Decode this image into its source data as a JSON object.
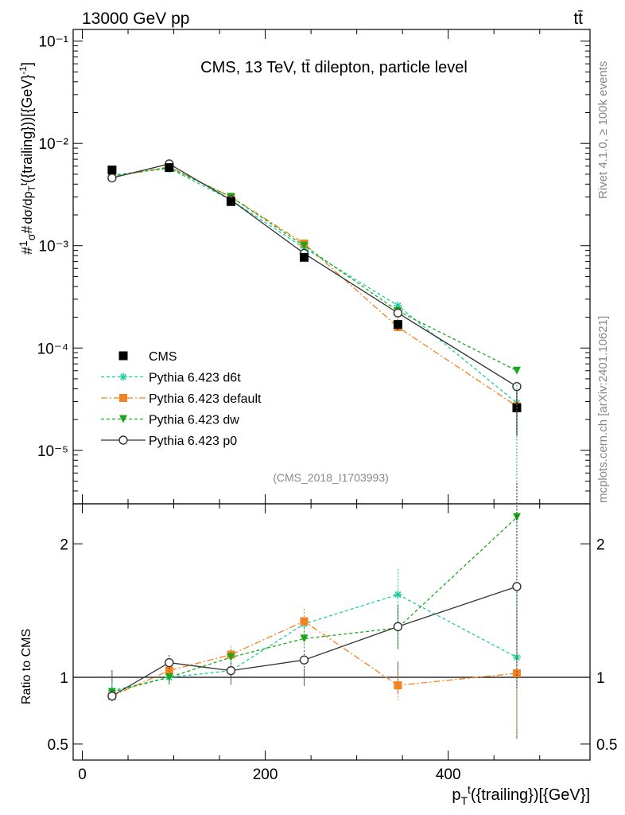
{
  "header": {
    "left": "13000 GeV pp",
    "right": "tt̄"
  },
  "side_labels": {
    "rivet": "Rivet 4.1.0, ≥ 100k events",
    "mcplots": "mcplots.cern.ch [arXiv:2401.10621]"
  },
  "chart_data": {
    "type": "line",
    "title": "CMS, 13 TeV, tt̄ dilepton, particle level",
    "watermark": "(CMS_2018_I1703993)",
    "xlabel": "p_T^t({trailing})[{GeV}]",
    "ylabel": "#frac{1}{σ}#frac{dσ}{dp_T^t({trailing})}[{GeV}^-1]",
    "ratio_ylabel": "Ratio to CMS",
    "xlim": [
      -10,
      555
    ],
    "ylim": [
      3e-06,
      0.13
    ],
    "ratio_ylim": [
      0.38,
      2.3
    ],
    "yscale": "log",
    "x_ticks": [
      0,
      200,
      400
    ],
    "y_ticks": [
      {
        "value": 1e-05,
        "label": "10⁻⁵"
      },
      {
        "value": 0.0001,
        "label": "10⁻⁴"
      },
      {
        "value": 0.001,
        "label": "10⁻³"
      },
      {
        "value": 0.01,
        "label": "10⁻²"
      },
      {
        "value": 0.1,
        "label": "10⁻¹"
      }
    ],
    "ratio_ticks": [
      {
        "value": 0.5,
        "label": "0.5"
      },
      {
        "value": 1,
        "label": "1"
      },
      {
        "value": 2,
        "label": "2"
      }
    ],
    "x": [
      32.5,
      95,
      162.5,
      242.5,
      345,
      475
    ],
    "data": {
      "name": "CMS",
      "values": [
        0.0055,
        0.0058,
        0.0027,
        0.00077,
        0.00017,
        2.6e-05
      ],
      "errors": [
        0.0003,
        0.0003,
        0.00015,
        5e-05,
        2e-05,
        1.2e-05
      ]
    },
    "series": [
      {
        "name": "Pythia 6.423 d6t",
        "color": "#1fcca0",
        "marker": "star",
        "dash": "4,3",
        "values": [
          0.0049,
          0.0057,
          0.0028,
          0.00095,
          0.00026,
          2.9e-05
        ],
        "ratio": [
          0.9,
          1.0,
          1.05,
          1.4,
          1.62,
          1.15
        ]
      },
      {
        "name": "Pythia 6.423 default",
        "color": "#f58220",
        "marker": "square",
        "dash": "8,3,2,3",
        "values": [
          0.0047,
          0.0059,
          0.003,
          0.00105,
          0.00016,
          2.7e-05
        ],
        "ratio": [
          0.86,
          1.05,
          1.17,
          1.42,
          0.94,
          1.03
        ]
      },
      {
        "name": "Pythia 6.423 dw",
        "color": "#1aa81a",
        "marker": "triangle-down",
        "dash": "4,3",
        "values": [
          0.0048,
          0.0058,
          0.003,
          0.001,
          0.00023,
          6e-05
        ],
        "ratio": [
          0.89,
          1.0,
          1.15,
          1.29,
          1.37,
          2.2
        ]
      },
      {
        "name": "Pythia 6.423 p0",
        "color": "#333333",
        "marker": "circle-open",
        "dash": "",
        "values": [
          0.0046,
          0.0063,
          0.0028,
          0.00084,
          0.00022,
          4.2e-05
        ],
        "ratio": [
          0.86,
          1.11,
          1.05,
          1.13,
          1.38,
          1.68
        ]
      }
    ]
  }
}
